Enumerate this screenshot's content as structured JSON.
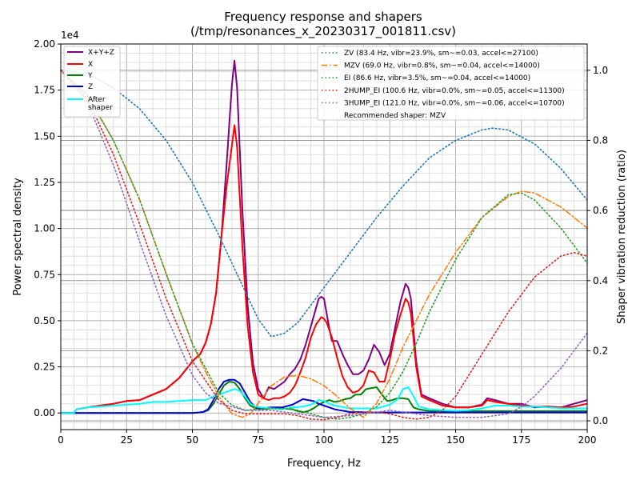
{
  "chart_data": {
    "type": "line",
    "title": "Frequency response and shapers",
    "subtitle": "(/tmp/resonances_x_20230317_001811.csv)",
    "xlabel": "Frequency, Hz",
    "ylabel": "Power spectral density",
    "y2label": "Shaper vibration reduction (ratio)",
    "xlim": [
      0,
      200
    ],
    "ylim": [
      -900,
      20000
    ],
    "y2lim": [
      -0.025,
      1.075
    ],
    "y_offset_text": "1e4",
    "x_ticks": [
      0,
      25,
      50,
      75,
      100,
      125,
      150,
      175,
      200
    ],
    "y_ticks": [
      0,
      2500,
      5000,
      7500,
      10000,
      12500,
      15000,
      17500,
      20000
    ],
    "y_tick_labels": [
      "0.00",
      "0.25",
      "0.50",
      "0.75",
      "1.00",
      "1.25",
      "1.50",
      "1.75",
      "2.00"
    ],
    "y2_ticks": [
      0,
      0.2,
      0.4,
      0.6,
      0.8,
      1.0
    ],
    "y2_tick_labels": [
      "0.0",
      "0.2",
      "0.4",
      "0.6",
      "0.8",
      "1.0"
    ],
    "grid": true,
    "legend_left_position": "upper-left",
    "legend_right_position": "upper-right",
    "psd_series": [
      {
        "name": "X+Y+Z",
        "color": "#800080",
        "x": [
          0,
          5,
          6,
          10,
          15,
          20,
          25,
          30,
          35,
          40,
          45,
          50,
          53,
          55,
          57,
          59,
          61,
          63,
          65,
          66,
          67,
          69,
          71,
          73,
          75,
          77,
          79,
          81,
          83,
          85,
          87,
          89,
          91,
          93,
          95,
          97,
          98,
          99,
          100,
          101,
          102,
          103,
          105,
          107,
          109,
          111,
          113,
          115,
          117,
          119,
          121,
          123,
          125,
          127,
          129,
          131,
          132,
          133,
          134,
          135,
          137,
          140,
          145,
          150,
          155,
          160,
          162,
          165,
          170,
          175,
          180,
          185,
          190,
          195,
          200
        ],
        "y": [
          0,
          0,
          200,
          300,
          400,
          500,
          650,
          700,
          1000,
          1300,
          1900,
          2800,
          3200,
          3800,
          4800,
          6500,
          9500,
          13500,
          17800,
          19100,
          17600,
          11000,
          5800,
          2700,
          1300,
          800,
          1400,
          1300,
          1500,
          1700,
          2100,
          2400,
          2900,
          3700,
          4700,
          5700,
          6200,
          6300,
          6200,
          5400,
          4600,
          3900,
          3900,
          3200,
          2600,
          2100,
          2100,
          2300,
          2900,
          3700,
          3300,
          2600,
          3200,
          4600,
          6000,
          7000,
          6800,
          6200,
          4500,
          2800,
          1000,
          800,
          500,
          300,
          300,
          450,
          800,
          700,
          500,
          500,
          300,
          350,
          300,
          500,
          700
        ]
      },
      {
        "name": "X",
        "color": "#ff0000",
        "x": [
          0,
          5,
          6,
          10,
          15,
          20,
          25,
          30,
          35,
          40,
          45,
          50,
          53,
          55,
          57,
          59,
          61,
          63,
          65,
          66,
          67,
          69,
          71,
          73,
          75,
          77,
          79,
          81,
          83,
          85,
          87,
          89,
          91,
          93,
          95,
          97,
          99,
          100,
          101,
          103,
          105,
          107,
          109,
          111,
          113,
          115,
          117,
          119,
          121,
          123,
          125,
          127,
          129,
          131,
          132,
          133,
          134,
          135,
          137,
          140,
          145,
          150,
          155,
          160,
          162,
          165,
          170,
          175,
          180,
          185,
          190,
          195,
          200
        ],
        "y": [
          0,
          0,
          200,
          300,
          400,
          500,
          650,
          700,
          1000,
          1300,
          1900,
          2800,
          3200,
          3800,
          4800,
          6500,
          9500,
          12300,
          14500,
          15600,
          14400,
          9000,
          4700,
          2200,
          1000,
          800,
          700,
          800,
          800,
          900,
          1100,
          1500,
          2200,
          3000,
          4100,
          4800,
          5200,
          5100,
          4900,
          4100,
          3000,
          2000,
          1400,
          1100,
          1200,
          1500,
          2300,
          2200,
          1700,
          1700,
          2900,
          4300,
          5300,
          6200,
          6000,
          5400,
          4000,
          2500,
          900,
          700,
          400,
          300,
          300,
          400,
          700,
          600,
          500,
          400,
          350,
          350,
          300,
          350,
          500
        ]
      },
      {
        "name": "Y",
        "color": "#008000",
        "x": [
          0,
          5,
          10,
          20,
          30,
          40,
          50,
          54,
          56,
          58,
          60,
          62,
          64,
          66,
          68,
          70,
          72,
          74,
          76,
          80,
          84,
          88,
          90,
          92,
          94,
          96,
          98,
          100,
          102,
          104,
          106,
          108,
          110,
          112,
          114,
          116,
          118,
          120,
          122,
          124,
          126,
          128,
          130,
          132,
          134,
          136,
          140,
          150,
          160,
          170,
          180,
          190,
          200
        ],
        "y": [
          0,
          0,
          0,
          0,
          0,
          0,
          0,
          50,
          150,
          500,
          1000,
          1500,
          1700,
          1650,
          1300,
          800,
          400,
          250,
          200,
          250,
          250,
          200,
          100,
          50,
          100,
          250,
          450,
          600,
          700,
          600,
          650,
          750,
          800,
          1000,
          1000,
          1300,
          1350,
          1400,
          1000,
          650,
          700,
          800,
          800,
          750,
          300,
          200,
          100,
          100,
          100,
          100,
          100,
          100,
          100
        ]
      },
      {
        "name": "Z",
        "color": "#0000cd",
        "x": [
          0,
          5,
          10,
          20,
          30,
          40,
          50,
          54,
          56,
          58,
          60,
          62,
          64,
          66,
          68,
          70,
          72,
          74,
          76,
          80,
          84,
          88,
          90,
          92,
          94,
          96,
          98,
          100,
          102,
          104,
          106,
          108,
          110,
          112,
          114,
          116,
          118,
          120,
          130,
          140,
          150,
          160,
          170,
          180,
          190,
          200
        ],
        "y": [
          0,
          0,
          0,
          0,
          0,
          0,
          0,
          50,
          200,
          700,
          1300,
          1700,
          1800,
          1800,
          1600,
          1100,
          600,
          300,
          250,
          300,
          300,
          450,
          600,
          750,
          700,
          650,
          500,
          400,
          300,
          200,
          150,
          100,
          50,
          50,
          50,
          30,
          30,
          30,
          30,
          30,
          30,
          30,
          30,
          30,
          30,
          30
        ]
      },
      {
        "name": "After\nshaper",
        "color": "#00ffff",
        "x": [
          0,
          5,
          6,
          10,
          15,
          20,
          25,
          30,
          35,
          40,
          45,
          50,
          55,
          58,
          60,
          62,
          64,
          66,
          68,
          70,
          72,
          74,
          76,
          80,
          84,
          88,
          92,
          95,
          98,
          100,
          102,
          104,
          106,
          108,
          110,
          112,
          115,
          120,
          125,
          128,
          130,
          132,
          134,
          136,
          140,
          145,
          150,
          155,
          160,
          165,
          170,
          175,
          180,
          185,
          190,
          195,
          200
        ],
        "y": [
          0,
          0,
          200,
          300,
          350,
          400,
          450,
          500,
          600,
          600,
          650,
          700,
          700,
          900,
          1000,
          1100,
          1200,
          1300,
          1200,
          900,
          500,
          350,
          300,
          250,
          200,
          300,
          350,
          450,
          700,
          650,
          500,
          400,
          350,
          300,
          250,
          250,
          250,
          250,
          450,
          750,
          1300,
          1400,
          900,
          350,
          200,
          150,
          120,
          150,
          250,
          400,
          400,
          350,
          350,
          300,
          250,
          250,
          250
        ]
      }
    ],
    "shaper_series": [
      {
        "name": "ZV (83.4 Hz, vibr=23.9%, sm~=0.03, accel<=27100)",
        "color": "#1f77b4",
        "dash": "dotted",
        "x": [
          0,
          10,
          20,
          30,
          40,
          50,
          60,
          70,
          75,
          80,
          85,
          90,
          100,
          110,
          120,
          130,
          140,
          150,
          160,
          164,
          170,
          180,
          190,
          200
        ],
        "y": [
          1.0,
          0.99,
          0.95,
          0.89,
          0.8,
          0.68,
          0.53,
          0.37,
          0.29,
          0.24,
          0.25,
          0.28,
          0.38,
          0.48,
          0.58,
          0.67,
          0.75,
          0.8,
          0.83,
          0.835,
          0.83,
          0.79,
          0.72,
          0.63
        ]
      },
      {
        "name": "MZV (69.0 Hz, vibr=0.8%, sm~=0.04, accel<=14000)",
        "color": "#ff7f0e",
        "dash": "dashdot",
        "x": [
          0,
          10,
          20,
          30,
          40,
          50,
          55,
          60,
          65,
          69,
          72,
          75,
          80,
          85,
          90,
          95,
          100,
          105,
          110,
          115,
          120,
          125,
          130,
          140,
          150,
          160,
          170,
          175,
          180,
          190,
          200
        ],
        "y": [
          1.0,
          0.93,
          0.8,
          0.63,
          0.42,
          0.22,
          0.14,
          0.07,
          0.02,
          0.01,
          0.02,
          0.05,
          0.1,
          0.125,
          0.13,
          0.12,
          0.1,
          0.07,
          0.035,
          0.01,
          0.05,
          0.12,
          0.21,
          0.36,
          0.48,
          0.58,
          0.64,
          0.655,
          0.65,
          0.61,
          0.55
        ]
      },
      {
        "name": "EI (86.6 Hz, vibr=3.5%, sm~=0.04, accel<=14000)",
        "color": "#2ca02c",
        "dash": "dotted",
        "x": [
          0,
          10,
          20,
          30,
          40,
          50,
          60,
          65,
          70,
          75,
          80,
          86.6,
          90,
          95,
          100,
          105,
          110,
          115,
          120,
          125,
          130,
          135,
          140,
          150,
          160,
          170,
          175,
          180,
          190,
          200
        ],
        "y": [
          1.0,
          0.93,
          0.8,
          0.63,
          0.42,
          0.22,
          0.08,
          0.045,
          0.03,
          0.033,
          0.035,
          0.035,
          0.03,
          0.02,
          0.01,
          0.005,
          0.01,
          0.02,
          0.04,
          0.08,
          0.14,
          0.22,
          0.31,
          0.46,
          0.58,
          0.645,
          0.65,
          0.63,
          0.55,
          0.45
        ]
      },
      {
        "name": "2HUMP_EI (100.6 Hz, vibr=0.0%, sm~=0.05, accel<=11300)",
        "color": "#d62728",
        "dash": "dotted",
        "x": [
          0,
          10,
          20,
          30,
          40,
          50,
          60,
          65,
          70,
          75,
          80,
          85,
          90,
          95,
          100,
          105,
          110,
          115,
          120,
          125,
          130,
          135,
          140,
          145,
          150,
          160,
          170,
          180,
          190,
          195,
          200
        ],
        "y": [
          1.0,
          0.92,
          0.76,
          0.56,
          0.35,
          0.17,
          0.06,
          0.03,
          0.02,
          0.02,
          0.02,
          0.02,
          0.015,
          0.005,
          0.003,
          0.01,
          0.02,
          0.025,
          0.025,
          0.02,
          0.01,
          0.005,
          0.01,
          0.03,
          0.07,
          0.19,
          0.31,
          0.41,
          0.47,
          0.48,
          0.47
        ]
      },
      {
        "name": "3HUMP_EI (121.0 Hz, vibr=0.0%, sm~=0.06, accel<=10700)",
        "color": "#9467bd",
        "dash": "dotted",
        "x": [
          0,
          10,
          20,
          30,
          40,
          50,
          55,
          60,
          65,
          70,
          75,
          80,
          90,
          100,
          110,
          120,
          125,
          130,
          140,
          150,
          160,
          165,
          170,
          175,
          180,
          185,
          190,
          195,
          200
        ],
        "y": [
          1.0,
          0.91,
          0.73,
          0.51,
          0.3,
          0.13,
          0.08,
          0.05,
          0.04,
          0.03,
          0.03,
          0.03,
          0.02,
          0.01,
          0.015,
          0.025,
          0.03,
          0.025,
          0.015,
          0.01,
          0.01,
          0.015,
          0.02,
          0.04,
          0.07,
          0.11,
          0.15,
          0.2,
          0.25
        ]
      }
    ],
    "recommended_text": "Recommended shaper: MZV"
  }
}
